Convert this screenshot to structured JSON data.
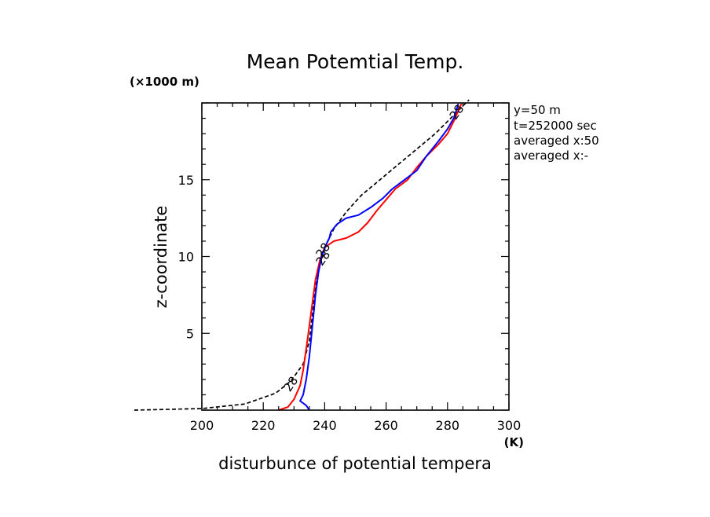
{
  "chart_data": {
    "type": "line",
    "title": "Mean Potemtial Temp.",
    "xlabel": "disturbunce of potential tempera",
    "ylabel": "z-coordinate",
    "x_unit": "(K)",
    "y_unit": "(×1000 m)",
    "xlim": [
      200,
      300
    ],
    "ylim": [
      0,
      20
    ],
    "x_ticks": [
      200,
      220,
      240,
      260,
      280,
      300
    ],
    "y_ticks": [
      5,
      10,
      15
    ],
    "annotations": [
      "y=50 m",
      "t=252000 sec",
      "averaged  x:50",
      "averaged  x:-"
    ],
    "series": [
      {
        "color": "#000000",
        "dashed": true,
        "label": "28",
        "points": [
          [
            178,
            0
          ],
          [
            200,
            0.1
          ],
          [
            214,
            0.4
          ],
          [
            224,
            1.1
          ],
          [
            229,
            1.9
          ],
          [
            233,
            3.0
          ],
          [
            235,
            4.5
          ],
          [
            236,
            6.2
          ],
          [
            237,
            8.0
          ],
          [
            238.5,
            9.5
          ],
          [
            240,
            10.6
          ],
          [
            243,
            11.8
          ],
          [
            247,
            12.9
          ],
          [
            252,
            14.0
          ],
          [
            258,
            15.0
          ],
          [
            264,
            16.0
          ],
          [
            270,
            17.0
          ],
          [
            276,
            18.0
          ],
          [
            281,
            19.0
          ],
          [
            285,
            19.8
          ],
          [
            287,
            20.2
          ]
        ],
        "label_points": [
          [
            229,
            1.7
          ],
          [
            283,
            19.4
          ]
        ]
      },
      {
        "color": "#ff0000",
        "dashed": false,
        "label": "28",
        "points": [
          [
            225,
            0
          ],
          [
            228,
            0.2
          ],
          [
            230,
            0.7
          ],
          [
            232,
            1.6
          ],
          [
            233,
            2.6
          ],
          [
            234,
            4.0
          ],
          [
            235,
            5.5
          ],
          [
            236,
            7.0
          ],
          [
            237,
            8.5
          ],
          [
            238.5,
            9.8
          ],
          [
            240,
            10.6
          ],
          [
            243,
            11.0
          ],
          [
            247,
            11.2
          ],
          [
            251,
            11.6
          ],
          [
            254,
            12.2
          ],
          [
            257,
            13.0
          ],
          [
            260,
            13.7
          ],
          [
            263,
            14.4
          ],
          [
            267,
            15.0
          ],
          [
            270,
            15.8
          ],
          [
            273,
            16.5
          ],
          [
            277,
            17.3
          ],
          [
            280,
            18.0
          ],
          [
            282,
            18.8
          ],
          [
            284,
            19.7
          ],
          [
            284.5,
            19.95
          ]
        ],
        "label_points": [
          [
            239.5,
            9.9
          ]
        ]
      },
      {
        "color": "#0000ff",
        "dashed": false,
        "label": "28",
        "points": [
          [
            235,
            0
          ],
          [
            234,
            0.3
          ],
          [
            232,
            0.6
          ],
          [
            233,
            1.0
          ],
          [
            234,
            2.0
          ],
          [
            235,
            3.5
          ],
          [
            236,
            5.5
          ],
          [
            237,
            7.5
          ],
          [
            238,
            9.0
          ],
          [
            239,
            10.0
          ],
          [
            240.5,
            10.8
          ],
          [
            241.5,
            11.2
          ],
          [
            242,
            11.6
          ],
          [
            244,
            12.1
          ],
          [
            247,
            12.5
          ],
          [
            251,
            12.7
          ],
          [
            255,
            13.2
          ],
          [
            259,
            13.8
          ],
          [
            262,
            14.4
          ],
          [
            266,
            15.0
          ],
          [
            270,
            15.6
          ],
          [
            273,
            16.5
          ],
          [
            277,
            17.5
          ],
          [
            280,
            18.3
          ],
          [
            282,
            19.0
          ],
          [
            283,
            19.6
          ],
          [
            283.5,
            19.95
          ]
        ],
        "label_points": [
          [
            239.5,
            10.4
          ]
        ]
      }
    ]
  }
}
